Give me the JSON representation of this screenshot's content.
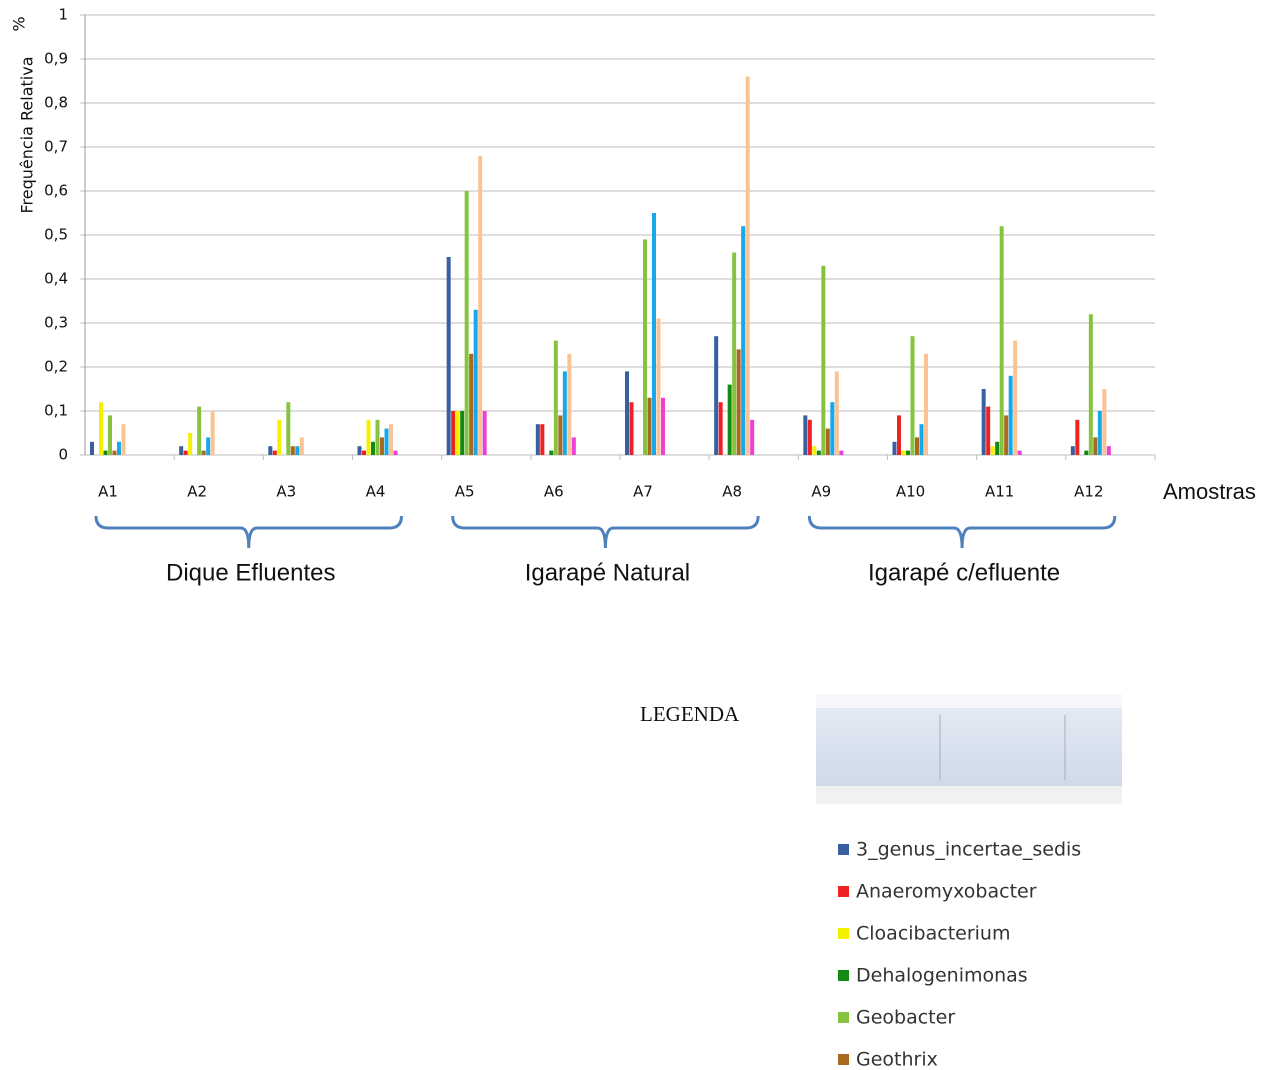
{
  "chart_data": {
    "type": "bar",
    "y_label": "Frequência Relativa",
    "y_unit": "%",
    "x_label": "Amostras",
    "categories": [
      "A1",
      "A2",
      "A3",
      "A4",
      "A5",
      "A6",
      "A7",
      "A8",
      "A9",
      "A10",
      "A11",
      "A12"
    ],
    "groups": [
      "Dique Efluentes",
      "Igarapé  Natural",
      "Igarapé  c/efluente"
    ],
    "ylim": [
      0,
      1
    ],
    "yticks": [
      0,
      {
        "value": 0.1,
        "label": "0,1"
      },
      {
        "value": 0.2,
        "label": "0,2"
      },
      {
        "value": 0.3,
        "label": "0,3"
      },
      {
        "value": 0.4,
        "label": "0,4"
      },
      {
        "value": 0.5,
        "label": "0,5"
      },
      {
        "value": 0.6,
        "label": "0,6"
      },
      {
        "value": 0.7,
        "label": "0,7"
      },
      {
        "value": 0.8,
        "label": "0,8"
      },
      {
        "value": 0.9,
        "label": "0,9"
      },
      1
    ],
    "grid": true,
    "legend_title": "LEGENDA",
    "series": [
      {
        "name": "3_genus_incertae_sedis",
        "color": "#3a5fa0",
        "values": [
          0.03,
          0.02,
          0.02,
          0.02,
          0.45,
          0.07,
          0.19,
          0.27,
          0.09,
          0.03,
          0.15,
          0.02
        ]
      },
      {
        "name": "Anaeromyxobacter",
        "color": "#ee2222",
        "values": [
          0,
          0.01,
          0.01,
          0.01,
          0.1,
          0.07,
          0.12,
          0.12,
          0.08,
          0.09,
          0.11,
          0.08
        ]
      },
      {
        "name": "Cloacibacterium",
        "color": "#f5f000",
        "values": [
          0.12,
          0.05,
          0.08,
          0.08,
          0.1,
          0,
          0,
          0,
          0.02,
          0.01,
          0.02,
          0
        ]
      },
      {
        "name": "Dehalogenimonas",
        "color": "#138a13",
        "values": [
          0.01,
          0,
          0,
          0.03,
          0.1,
          0.01,
          0,
          0.16,
          0.01,
          0.01,
          0.03,
          0.01
        ]
      },
      {
        "name": "Geobacter",
        "color": "#86c440",
        "values": [
          0.09,
          0.11,
          0.12,
          0.08,
          0.6,
          0.26,
          0.49,
          0.46,
          0.43,
          0.27,
          0.52,
          0.32
        ]
      },
      {
        "name": "Geothrix",
        "color": "#a86a20",
        "values": [
          0.01,
          0.01,
          0.02,
          0.04,
          0.23,
          0.09,
          0.13,
          0.24,
          0.06,
          0.04,
          0.09,
          0.04
        ]
      },
      {
        "color": "#16a8e8",
        "values": [
          0.03,
          0.04,
          0.02,
          0.06,
          0.33,
          0.19,
          0.55,
          0.52,
          0.12,
          0.07,
          0.18,
          0.1
        ]
      },
      {
        "color": "#fbc394",
        "values": [
          0.07,
          0.1,
          0.04,
          0.07,
          0.68,
          0.23,
          0.31,
          0.86,
          0.19,
          0.23,
          0.26,
          0.15
        ]
      },
      {
        "color": "#ee3fd8",
        "values": [
          0,
          0,
          0,
          0.01,
          0.1,
          0.04,
          0.13,
          0.08,
          0.01,
          0,
          0.01,
          0.02
        ]
      }
    ]
  }
}
